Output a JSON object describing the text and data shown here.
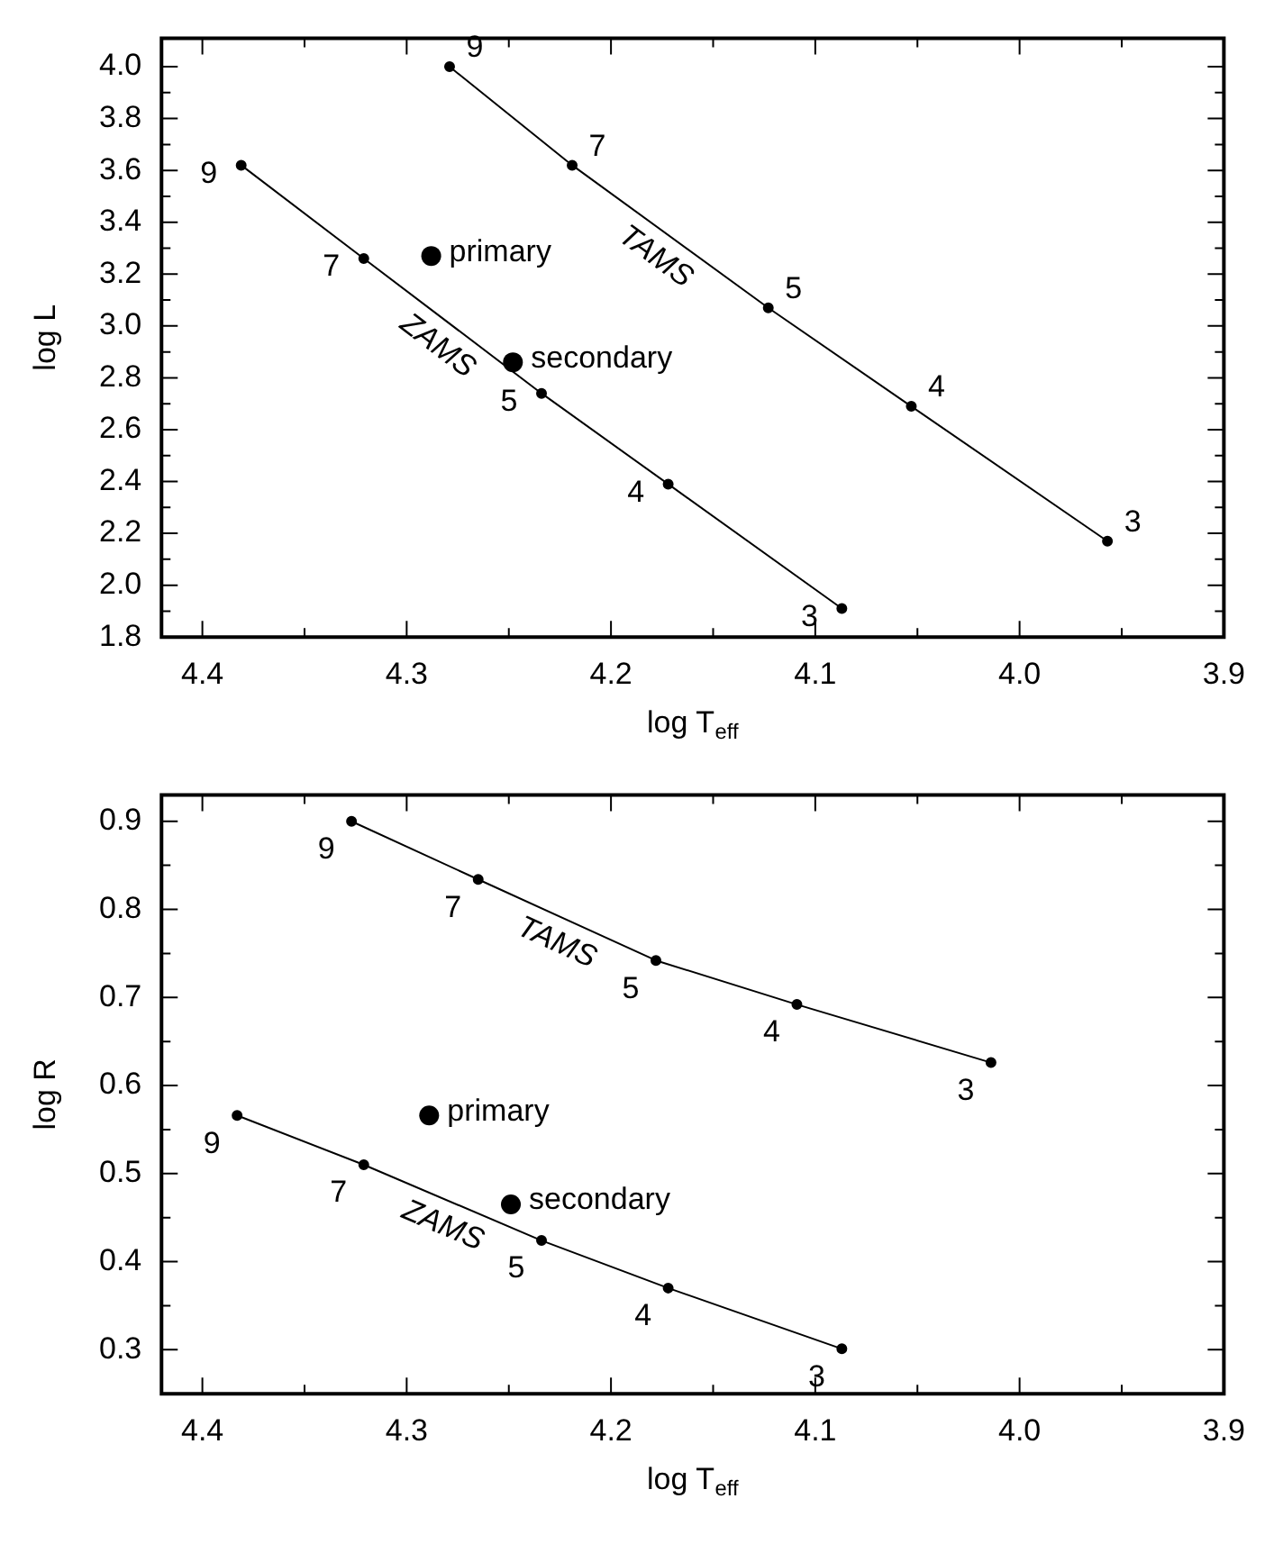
{
  "chart_data": [
    {
      "type": "line",
      "xlabel": "log T$_{eff}$",
      "ylabel": "log L",
      "legend": false,
      "grid": false,
      "marker": "circle",
      "line_style": "solid",
      "xlim": [
        4.42,
        3.9
      ],
      "xticks": [
        4.4,
        {
          "value": 4.35,
          "label": null
        },
        4.3,
        {
          "value": 4.25,
          "label": null
        },
        4.2,
        {
          "value": 4.15,
          "label": null
        },
        4.1,
        {
          "value": 4.05,
          "label": null
        },
        {
          "value": 4.0,
          "label": "4.0"
        },
        {
          "value": 3.95,
          "label": null
        },
        3.9
      ],
      "ylim": [
        1.8,
        4.11
      ],
      "yticks": [
        1.8,
        {
          "value": 1.9,
          "label": null
        },
        {
          "value": 2.0,
          "label": "2.0"
        },
        {
          "value": 2.1,
          "label": null
        },
        2.2,
        {
          "value": 2.3,
          "label": null
        },
        2.4,
        {
          "value": 2.5,
          "label": null
        },
        2.6,
        {
          "value": 2.7,
          "label": null
        },
        2.8,
        {
          "value": 2.9,
          "label": null
        },
        {
          "value": 3.0,
          "label": "3.0"
        },
        {
          "value": 3.1,
          "label": null
        },
        3.2,
        {
          "value": 3.3,
          "label": null
        },
        3.4,
        {
          "value": 3.5,
          "label": null
        },
        3.6,
        {
          "value": 3.7,
          "label": null
        },
        3.8,
        {
          "value": 3.9,
          "label": null
        },
        {
          "value": 4.0,
          "label": "4.0"
        }
      ],
      "series": [
        {
          "name": "ZAMS",
          "type": "line",
          "color": "#000000",
          "x": [
            4.381,
            4.321,
            4.234,
            4.172,
            4.087
          ],
          "values": [
            3.62,
            3.26,
            2.74,
            2.39,
            1.91
          ]
        },
        {
          "name": "TAMS",
          "type": "line",
          "color": "#000000",
          "x": [
            4.279,
            4.219,
            4.123,
            4.053,
            3.957
          ],
          "values": [
            4.0,
            3.62,
            3.07,
            2.69,
            2.17
          ]
        },
        {
          "name": "primary",
          "type": "scatter",
          "color": "#000000",
          "x": [
            4.288
          ],
          "values": [
            3.27
          ]
        },
        {
          "name": "secondary",
          "type": "scatter",
          "color": "#000000",
          "x": [
            4.248
          ],
          "values": [
            2.86
          ]
        }
      ],
      "annotations": [
        {
          "text": "9",
          "x": 4.381,
          "y": 3.62
        },
        {
          "text": "7",
          "x": 4.321,
          "y": 3.26
        },
        {
          "text": "5",
          "x": 4.234,
          "y": 2.74
        },
        {
          "text": "4",
          "x": 4.172,
          "y": 2.39
        },
        {
          "text": "3",
          "x": 4.087,
          "y": 1.91
        },
        {
          "text": "9",
          "x": 4.279,
          "y": 4.0
        },
        {
          "text": "7",
          "x": 4.219,
          "y": 3.62
        },
        {
          "text": "5",
          "x": 4.123,
          "y": 3.07
        },
        {
          "text": "4",
          "x": 4.053,
          "y": 2.69
        },
        {
          "text": "3",
          "x": 3.957,
          "y": 2.17
        }
      ]
    },
    {
      "type": "line",
      "xlabel": "log T$_{eff}$",
      "ylabel": "log R",
      "legend": false,
      "grid": false,
      "marker": "circle",
      "line_style": "solid",
      "xlim": [
        4.42,
        3.9
      ],
      "xticks": [
        4.4,
        {
          "value": 4.35,
          "label": null
        },
        4.3,
        {
          "value": 4.25,
          "label": null
        },
        4.2,
        {
          "value": 4.15,
          "label": null
        },
        4.1,
        {
          "value": 4.05,
          "label": null
        },
        {
          "value": 4.0,
          "label": "4.0"
        },
        {
          "value": 3.95,
          "label": null
        },
        3.9
      ],
      "ylim": [
        0.25,
        0.93
      ],
      "yticks": [
        0.3,
        {
          "value": 0.35,
          "label": null
        },
        0.4,
        {
          "value": 0.45,
          "label": null
        },
        0.5,
        {
          "value": 0.55,
          "label": null
        },
        0.6,
        {
          "value": 0.65,
          "label": null
        },
        0.7,
        {
          "value": 0.75,
          "label": null
        },
        0.8,
        {
          "value": 0.85,
          "label": null
        },
        0.9
      ],
      "series": [
        {
          "name": "ZAMS",
          "type": "line",
          "color": "#000000",
          "x": [
            4.383,
            4.321,
            4.234,
            4.172,
            4.087
          ],
          "values": [
            0.566,
            0.51,
            0.424,
            0.37,
            0.301
          ]
        },
        {
          "name": "TAMS",
          "type": "line",
          "color": "#000000",
          "x": [
            4.327,
            4.265,
            4.178,
            4.109,
            4.014
          ],
          "values": [
            0.9,
            0.834,
            0.742,
            0.692,
            0.626
          ]
        },
        {
          "name": "primary",
          "type": "scatter",
          "color": "#000000",
          "x": [
            4.289
          ],
          "values": [
            0.566
          ]
        },
        {
          "name": "secondary",
          "type": "scatter",
          "color": "#000000",
          "x": [
            4.249
          ],
          "values": [
            0.465
          ]
        }
      ],
      "annotations": [
        {
          "text": "9",
          "x": 4.383,
          "y": 0.566
        },
        {
          "text": "7",
          "x": 4.321,
          "y": 0.51
        },
        {
          "text": "5",
          "x": 4.234,
          "y": 0.424
        },
        {
          "text": "4",
          "x": 4.172,
          "y": 0.37
        },
        {
          "text": "3",
          "x": 4.087,
          "y": 0.301
        },
        {
          "text": "9",
          "x": 4.327,
          "y": 0.9
        },
        {
          "text": "7",
          "x": 4.265,
          "y": 0.834
        },
        {
          "text": "5",
          "x": 4.178,
          "y": 0.742
        },
        {
          "text": "4",
          "x": 4.109,
          "y": 0.692
        },
        {
          "text": "3",
          "x": 4.014,
          "y": 0.626
        }
      ]
    }
  ]
}
